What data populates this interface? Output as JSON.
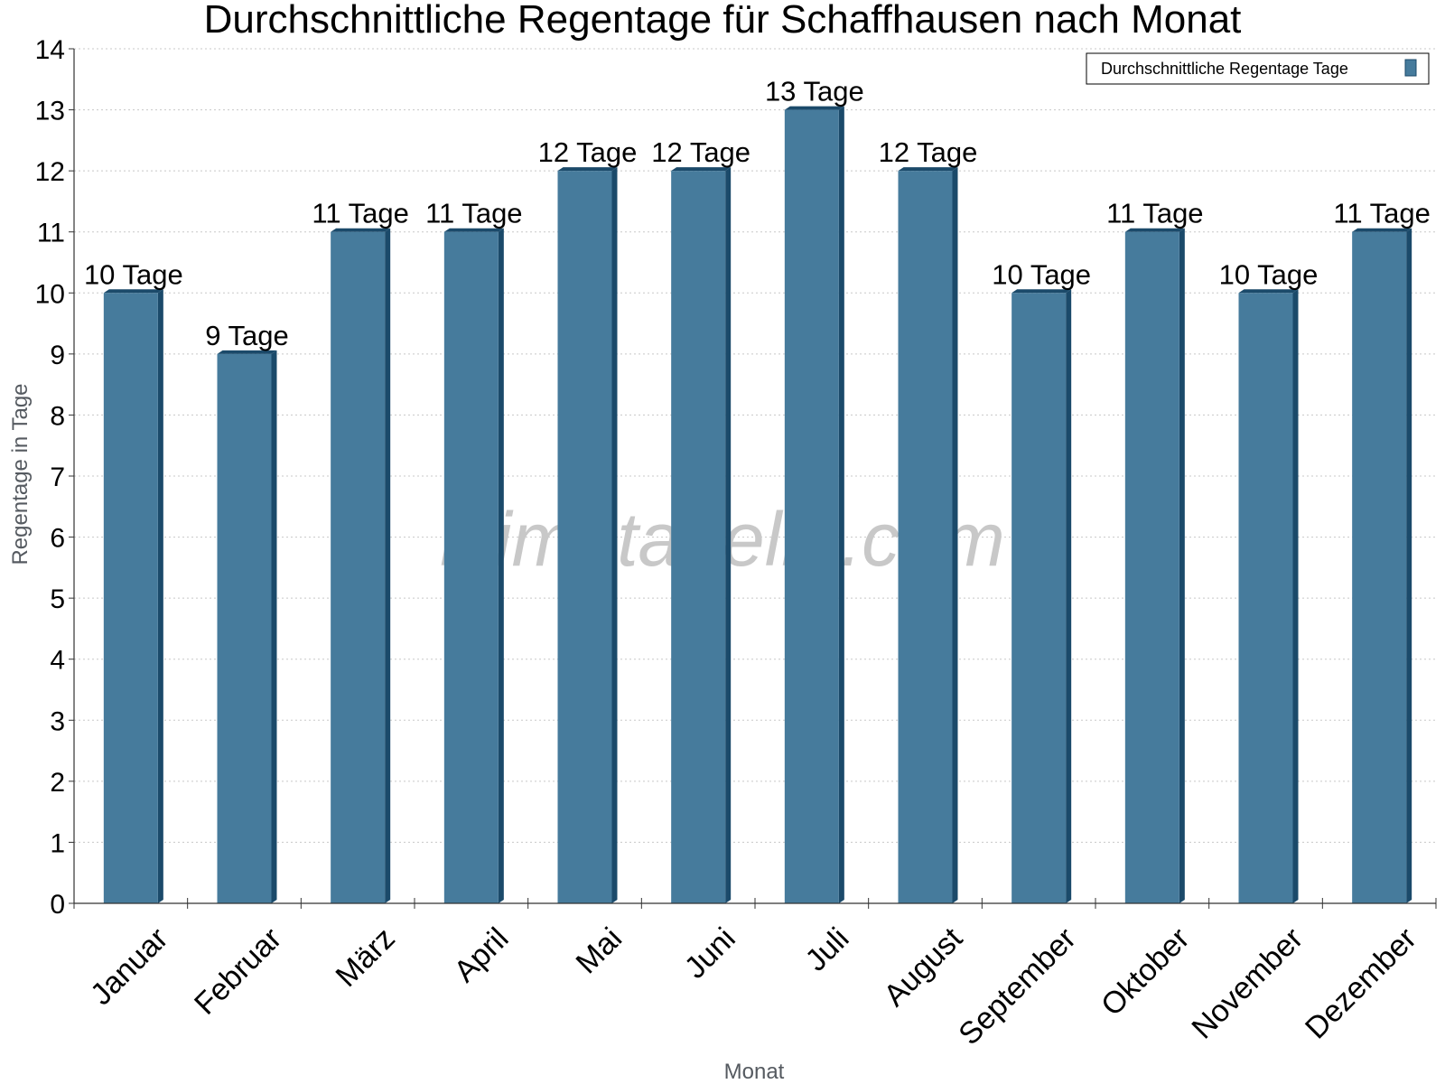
{
  "chart_data": {
    "type": "bar",
    "title": "Durchschnittliche Regentage für Schaffhausen nach Monat",
    "xlabel": "Monat",
    "ylabel": "Regentage in Tage",
    "ylim": [
      0,
      14
    ],
    "yticks": [
      0,
      1,
      2,
      3,
      4,
      5,
      6,
      7,
      8,
      9,
      10,
      11,
      12,
      13,
      14
    ],
    "grid": true,
    "legend_position": "top-right",
    "categories": [
      "Januar",
      "Februar",
      "März",
      "April",
      "Mai",
      "Juni",
      "Juli",
      "August",
      "September",
      "Oktober",
      "November",
      "Dezember"
    ],
    "series": [
      {
        "name": "Durchschnittliche Regentage Tage",
        "color": "#467b9c",
        "values": [
          10,
          9,
          11,
          11,
          12,
          12,
          13,
          12,
          10,
          11,
          10,
          11
        ],
        "labels": [
          "10 Tage",
          "9 Tage",
          "11 Tage",
          "11 Tage",
          "12 Tage",
          "12 Tage",
          "13 Tage",
          "12 Tage",
          "10 Tage",
          "11 Tage",
          "10 Tage",
          "11 Tage"
        ]
      }
    ]
  },
  "watermark": "klimatabelle.com",
  "colors": {
    "bar_front": "#467b9c",
    "bar_side": "#1b4a6a",
    "grid": "#c8c8c8",
    "axis": "#333333"
  }
}
